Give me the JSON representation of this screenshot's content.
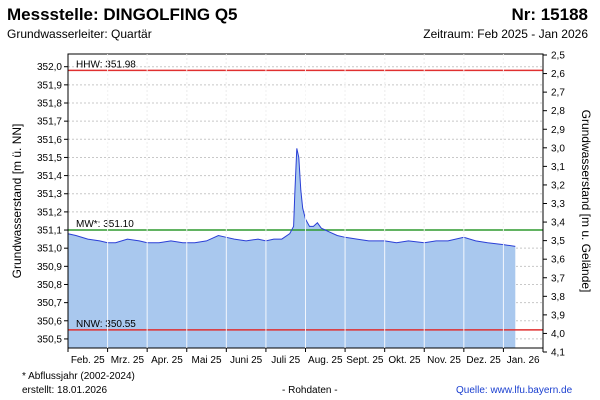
{
  "header": {
    "title": "Messstelle: DINGOLFING Q5",
    "number": "Nr: 15188",
    "aquifer": "Grundwasserleiter: Quartär",
    "period": "Zeitraum: Feb 2025 - Jan 2026"
  },
  "footer": {
    "note": "* Abflussjahr (2002-2024)",
    "created": "erstellt:  18.01.2026",
    "rawdata": "- Rohdaten -",
    "source": "Quelle:  www.lfu.bayern.de"
  },
  "colors": {
    "line": "#2a3fd6",
    "area": "#a9c8ee",
    "hhw": "#e03030",
    "nnw": "#e03030",
    "mw": "#2e9a2e",
    "grid": "#c8c8c8"
  },
  "chart_data": {
    "type": "area",
    "ylabel": "Grundwasserstand [m ü. NN]",
    "ylabel_right": "Grundwasserstand [m u. Gelände]",
    "ylim": [
      350.45,
      352.07
    ],
    "yticks": [
      350.5,
      350.6,
      350.7,
      350.8,
      350.9,
      351.0,
      351.1,
      351.2,
      351.3,
      351.4,
      351.5,
      351.6,
      351.7,
      351.8,
      351.9,
      352.0
    ],
    "ytick_labels": [
      "350,5",
      "350,6",
      "350,7",
      "350,8",
      "350,9",
      "351,0",
      "351,1",
      "351,2",
      "351,3",
      "351,4",
      "351,5",
      "351,6",
      "351,7",
      "351,8",
      "351,9",
      "352,0"
    ],
    "right_yticks": [
      "2,5",
      "2,6",
      "2,7",
      "2,8",
      "2,9",
      "3,0",
      "3,1",
      "3,2",
      "3,3",
      "3,4",
      "3,5",
      "3,6",
      "3,7",
      "3,8",
      "3,9",
      "4,0",
      "4,1"
    ],
    "right_ytick_values": [
      2.5,
      2.6,
      2.7,
      2.8,
      2.9,
      3.0,
      3.1,
      3.2,
      3.3,
      3.4,
      3.5,
      3.6,
      3.7,
      3.8,
      3.9,
      4.0,
      4.1
    ],
    "months": [
      "Feb. 25",
      "Mrz. 25",
      "Apr. 25",
      "Mai 25",
      "Juni 25",
      "Juli 25",
      "Aug. 25",
      "Sept. 25",
      "Okt. 25",
      "Nov. 25",
      "Dez. 25",
      "Jan. 26"
    ],
    "reference_lines": [
      {
        "label": "HHW: 351.98",
        "value": 351.98,
        "color_key": "hhw"
      },
      {
        "label": "MW*: 351.10",
        "value": 351.1,
        "color_key": "mw"
      },
      {
        "label": "NNW: 350.55",
        "value": 350.55,
        "color_key": "nnw"
      }
    ],
    "series": [
      {
        "x_months": [
          0,
          0.2,
          0.5,
          0.8,
          1.0,
          1.2,
          1.5,
          1.8,
          2.0,
          2.3,
          2.6,
          2.9,
          3.2,
          3.5,
          3.8,
          4.0,
          4.2,
          4.5,
          4.8,
          5.0,
          5.2,
          5.4,
          5.6,
          5.7,
          5.73,
          5.78,
          5.83,
          5.88,
          5.93,
          6.0,
          6.1,
          6.2,
          6.3,
          6.4,
          6.5,
          6.6,
          6.8,
          7.0,
          7.3,
          7.6,
          8.0,
          8.3,
          8.6,
          9.0,
          9.3,
          9.6,
          10.0,
          10.3,
          10.6,
          11.0,
          11.3
        ],
        "values": [
          351.08,
          351.07,
          351.05,
          351.04,
          351.03,
          351.03,
          351.05,
          351.04,
          351.03,
          351.03,
          351.04,
          351.03,
          351.03,
          351.04,
          351.07,
          351.06,
          351.05,
          351.04,
          351.05,
          351.04,
          351.05,
          351.05,
          351.08,
          351.12,
          351.3,
          351.55,
          351.5,
          351.32,
          351.22,
          351.16,
          351.12,
          351.12,
          351.14,
          351.11,
          351.1,
          351.09,
          351.07,
          351.06,
          351.05,
          351.04,
          351.04,
          351.03,
          351.04,
          351.03,
          351.04,
          351.04,
          351.06,
          351.04,
          351.03,
          351.02,
          351.01
        ]
      }
    ]
  }
}
